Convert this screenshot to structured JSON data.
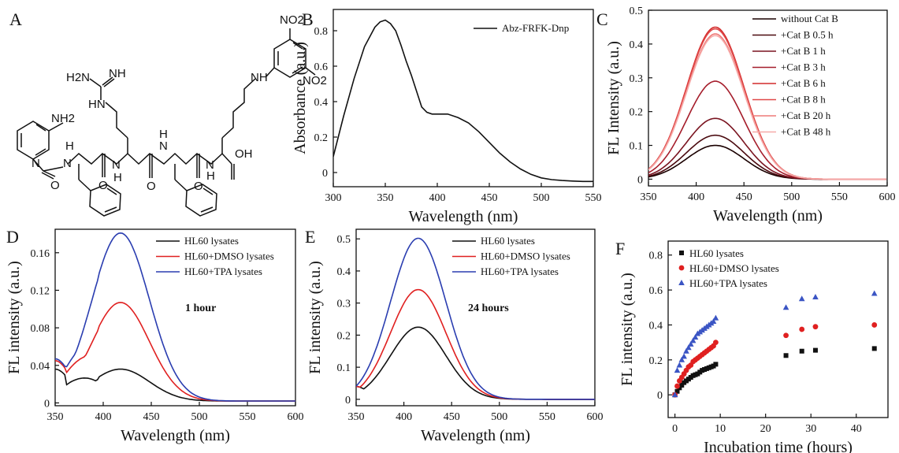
{
  "panel_letters": [
    "A",
    "B",
    "C",
    "D",
    "E",
    "F"
  ],
  "structure": {
    "labels": [
      "NO2",
      "NO2",
      "NH",
      "H2N",
      "NH",
      "HN",
      "NH2",
      "H",
      "N",
      "N",
      "H",
      "N",
      "H",
      "H",
      "N",
      "N",
      "O",
      "O",
      "O",
      "O",
      "OH"
    ]
  },
  "chart_data": [
    {
      "id": "B",
      "type": "line",
      "title": "",
      "xlabel": "Wavelength (nm)",
      "ylabel": "Absorbance (a.u.)",
      "xlim": [
        300,
        550
      ],
      "ylim": [
        -0.08,
        0.92
      ],
      "xticks": [
        300,
        350,
        400,
        450,
        500,
        550
      ],
      "yticks": [
        0,
        0.2,
        0.4,
        0.6,
        0.8
      ],
      "ytick_labels": [
        "0",
        "0.2",
        "0.4",
        "0.6",
        "0.8"
      ],
      "legend_position": "top-right",
      "series": [
        {
          "name": "Abz-FRFK-Dnp",
          "color": "#111111",
          "x": [
            300,
            310,
            320,
            330,
            340,
            345,
            350,
            355,
            360,
            365,
            370,
            375,
            380,
            385,
            390,
            395,
            400,
            410,
            420,
            430,
            440,
            450,
            460,
            470,
            480,
            490,
            500,
            510,
            520,
            530,
            540,
            550
          ],
          "y": [
            0.09,
            0.32,
            0.53,
            0.71,
            0.82,
            0.85,
            0.86,
            0.84,
            0.8,
            0.72,
            0.63,
            0.55,
            0.46,
            0.37,
            0.34,
            0.33,
            0.33,
            0.33,
            0.31,
            0.28,
            0.23,
            0.17,
            0.11,
            0.06,
            0.02,
            -0.01,
            -0.03,
            -0.04,
            -0.045,
            -0.048,
            -0.05,
            -0.05
          ]
        }
      ]
    },
    {
      "id": "C",
      "type": "line",
      "title": "",
      "xlabel": "Wavelength (nm)",
      "ylabel": "FL Intensity (a.u.)",
      "xlim": [
        350,
        600
      ],
      "ylim": [
        -0.02,
        0.5
      ],
      "xticks": [
        350,
        400,
        450,
        500,
        550,
        600
      ],
      "yticks": [
        0,
        0.1,
        0.2,
        0.3,
        0.4,
        0.5
      ],
      "ytick_labels": [
        "0",
        "0.1",
        "0.2",
        "0.3",
        "0.4",
        "0.5"
      ],
      "legend_position": "top-right",
      "peak_shape": {
        "center": 420,
        "width": 30,
        "baseline": 0,
        "x_start": 345,
        "x_end": 600
      },
      "series": [
        {
          "name": "without Cat B",
          "color": "#1a0000",
          "peak": 0.1
        },
        {
          "name": "+Cat B  0.5 h",
          "color": "#4a0a0f",
          "peak": 0.13
        },
        {
          "name": "+Cat B  1 h",
          "color": "#7a1420",
          "peak": 0.18
        },
        {
          "name": "+Cat B  3 h",
          "color": "#a51d2b",
          "peak": 0.29
        },
        {
          "name": "+Cat B  6 h",
          "color": "#d22a2a",
          "peak": 0.45
        },
        {
          "name": "+Cat B  8 h",
          "color": "#e04848",
          "peak": 0.445
        },
        {
          "name": "+Cat B  20 h",
          "color": "#ee7a78",
          "peak": 0.43
        },
        {
          "name": "+Cat B  48 h",
          "color": "#f6aaa8",
          "peak": 0.425
        }
      ]
    },
    {
      "id": "D",
      "type": "line",
      "title": "",
      "xlabel": "Wavelength (nm)",
      "ylabel": "FL intensity (a.u.)",
      "xlim": [
        350,
        600
      ],
      "ylim": [
        -0.003,
        0.185
      ],
      "xticks": [
        350,
        400,
        450,
        500,
        550,
        600
      ],
      "yticks": [
        0,
        0.04,
        0.08,
        0.12,
        0.16
      ],
      "ytick_labels": [
        "0",
        "0.04",
        "0.08",
        "0.12",
        "0.16"
      ],
      "legend_position": "top-right",
      "annotation": "1 hour",
      "peak_shape": {
        "center": 418,
        "width": 30,
        "x_start": 350,
        "x_end": 600
      },
      "series": [
        {
          "name": "HL60 lysates",
          "color": "#111111",
          "peak": 0.034,
          "shoulder": 0.034,
          "dip": 0.021
        },
        {
          "name": "HL60+DMSO lysates",
          "color": "#e02020",
          "peak": 0.105,
          "shoulder": 0.043,
          "dip": 0.031
        },
        {
          "name": "HL60+TPA lysates",
          "color": "#2a3db0",
          "peak": 0.179,
          "shoulder": 0.045,
          "dip": 0.032
        }
      ]
    },
    {
      "id": "E",
      "type": "line",
      "title": "",
      "xlabel": "Wavelength (nm)",
      "ylabel": "FL intensity (a.u.)",
      "xlim": [
        350,
        600
      ],
      "ylim": [
        -0.02,
        0.53
      ],
      "xticks": [
        350,
        400,
        450,
        500,
        550,
        600
      ],
      "yticks": [
        0,
        0.1,
        0.2,
        0.3,
        0.4,
        0.5
      ],
      "ytick_labels": [
        "0",
        "0.1",
        "0.2",
        "0.3",
        "0.4",
        "0.5"
      ],
      "legend_position": "top-right",
      "annotation": "24 hours",
      "peak_shape": {
        "center": 415,
        "width": 29,
        "x_start": 350,
        "x_end": 600
      },
      "series": [
        {
          "name": "HL60 lysates",
          "color": "#111111",
          "peak": 0.225,
          "shoulder": 0.04
        },
        {
          "name": "HL60+DMSO lysates",
          "color": "#e02020",
          "peak": 0.342,
          "shoulder": 0.04
        },
        {
          "name": "HL60+TPA lysates",
          "color": "#2a3db0",
          "peak": 0.502,
          "shoulder": 0.04
        }
      ]
    },
    {
      "id": "F",
      "type": "scatter",
      "title": "",
      "xlabel": "Incubation time (hours)",
      "ylabel": "FL intensity (a.u.)",
      "xlim": [
        -1.5,
        47
      ],
      "ylim": [
        -0.13,
        0.88
      ],
      "xticks": [
        0,
        10,
        20,
        30,
        40
      ],
      "yticks": [
        0,
        0.2,
        0.4,
        0.6,
        0.8
      ],
      "ytick_labels": [
        "0",
        "0.2",
        "0.4",
        "0.6",
        "0.8"
      ],
      "legend_position": "top-left",
      "series": [
        {
          "name": "HL60 lysates",
          "color": "#111111",
          "marker": "square",
          "x": [
            0,
            0.5,
            1,
            1.5,
            2,
            2.5,
            3,
            3.5,
            4,
            4.5,
            5,
            5.5,
            6,
            6.5,
            7,
            7.5,
            8,
            8.5,
            9,
            24.5,
            28,
            31,
            44
          ],
          "y": [
            0,
            0.02,
            0.04,
            0.055,
            0.07,
            0.08,
            0.09,
            0.1,
            0.11,
            0.115,
            0.12,
            0.13,
            0.14,
            0.145,
            0.15,
            0.155,
            0.16,
            0.165,
            0.175,
            0.225,
            0.25,
            0.255,
            0.265
          ]
        },
        {
          "name": "HL60+DMSO lysates",
          "color": "#e02020",
          "marker": "circle",
          "x": [
            0,
            0.5,
            1,
            1.5,
            2,
            2.5,
            3,
            3.5,
            4,
            4.5,
            5,
            5.5,
            6,
            6.5,
            7,
            7.5,
            8,
            8.5,
            9,
            24.5,
            28,
            31,
            44
          ],
          "y": [
            0,
            0.05,
            0.08,
            0.1,
            0.12,
            0.14,
            0.16,
            0.17,
            0.19,
            0.2,
            0.21,
            0.22,
            0.23,
            0.24,
            0.25,
            0.26,
            0.27,
            0.28,
            0.3,
            0.34,
            0.375,
            0.39,
            0.4
          ]
        },
        {
          "name": "HL60+TPA lysates",
          "color": "#3b55c4",
          "marker": "triangle",
          "x": [
            0,
            0.5,
            1,
            1.5,
            2,
            2.5,
            3,
            3.5,
            4,
            4.5,
            5,
            5.5,
            6,
            6.5,
            7,
            7.5,
            8,
            8.5,
            9,
            24.5,
            28,
            31,
            44
          ],
          "y": [
            0,
            0.14,
            0.17,
            0.2,
            0.22,
            0.25,
            0.27,
            0.29,
            0.31,
            0.33,
            0.35,
            0.36,
            0.37,
            0.38,
            0.39,
            0.4,
            0.41,
            0.42,
            0.44,
            0.5,
            0.55,
            0.56,
            0.58
          ]
        }
      ]
    }
  ]
}
